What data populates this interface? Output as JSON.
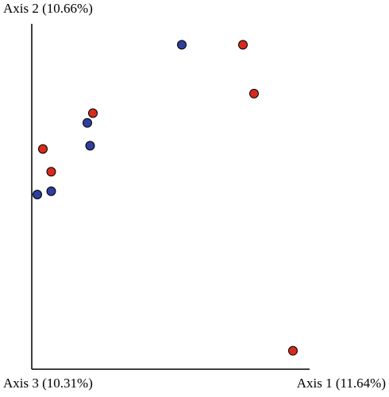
{
  "chart_data": {
    "type": "scatter",
    "title": "",
    "xlabel": "Axis 1 (11.64%)",
    "ylabel": "Axis 2 (10.66%)",
    "zlabel": "Axis 3 (10.31%)",
    "xlim": [
      0,
      100
    ],
    "ylim": [
      0,
      100
    ],
    "grid": false,
    "legend": "none",
    "series": [
      {
        "color": "#d52b1e",
        "points": [
          {
            "x": 76,
            "y": 96
          },
          {
            "x": 80,
            "y": 81
          },
          {
            "x": 22,
            "y": 75
          },
          {
            "x": 4,
            "y": 64
          },
          {
            "x": 7,
            "y": 57
          },
          {
            "x": 94,
            "y": 2
          }
        ]
      },
      {
        "color": "#2e3f9e",
        "points": [
          {
            "x": 54,
            "y": 96
          },
          {
            "x": 20,
            "y": 72
          },
          {
            "x": 21,
            "y": 65
          },
          {
            "x": 2,
            "y": 50
          },
          {
            "x": 7,
            "y": 51
          }
        ]
      }
    ]
  }
}
